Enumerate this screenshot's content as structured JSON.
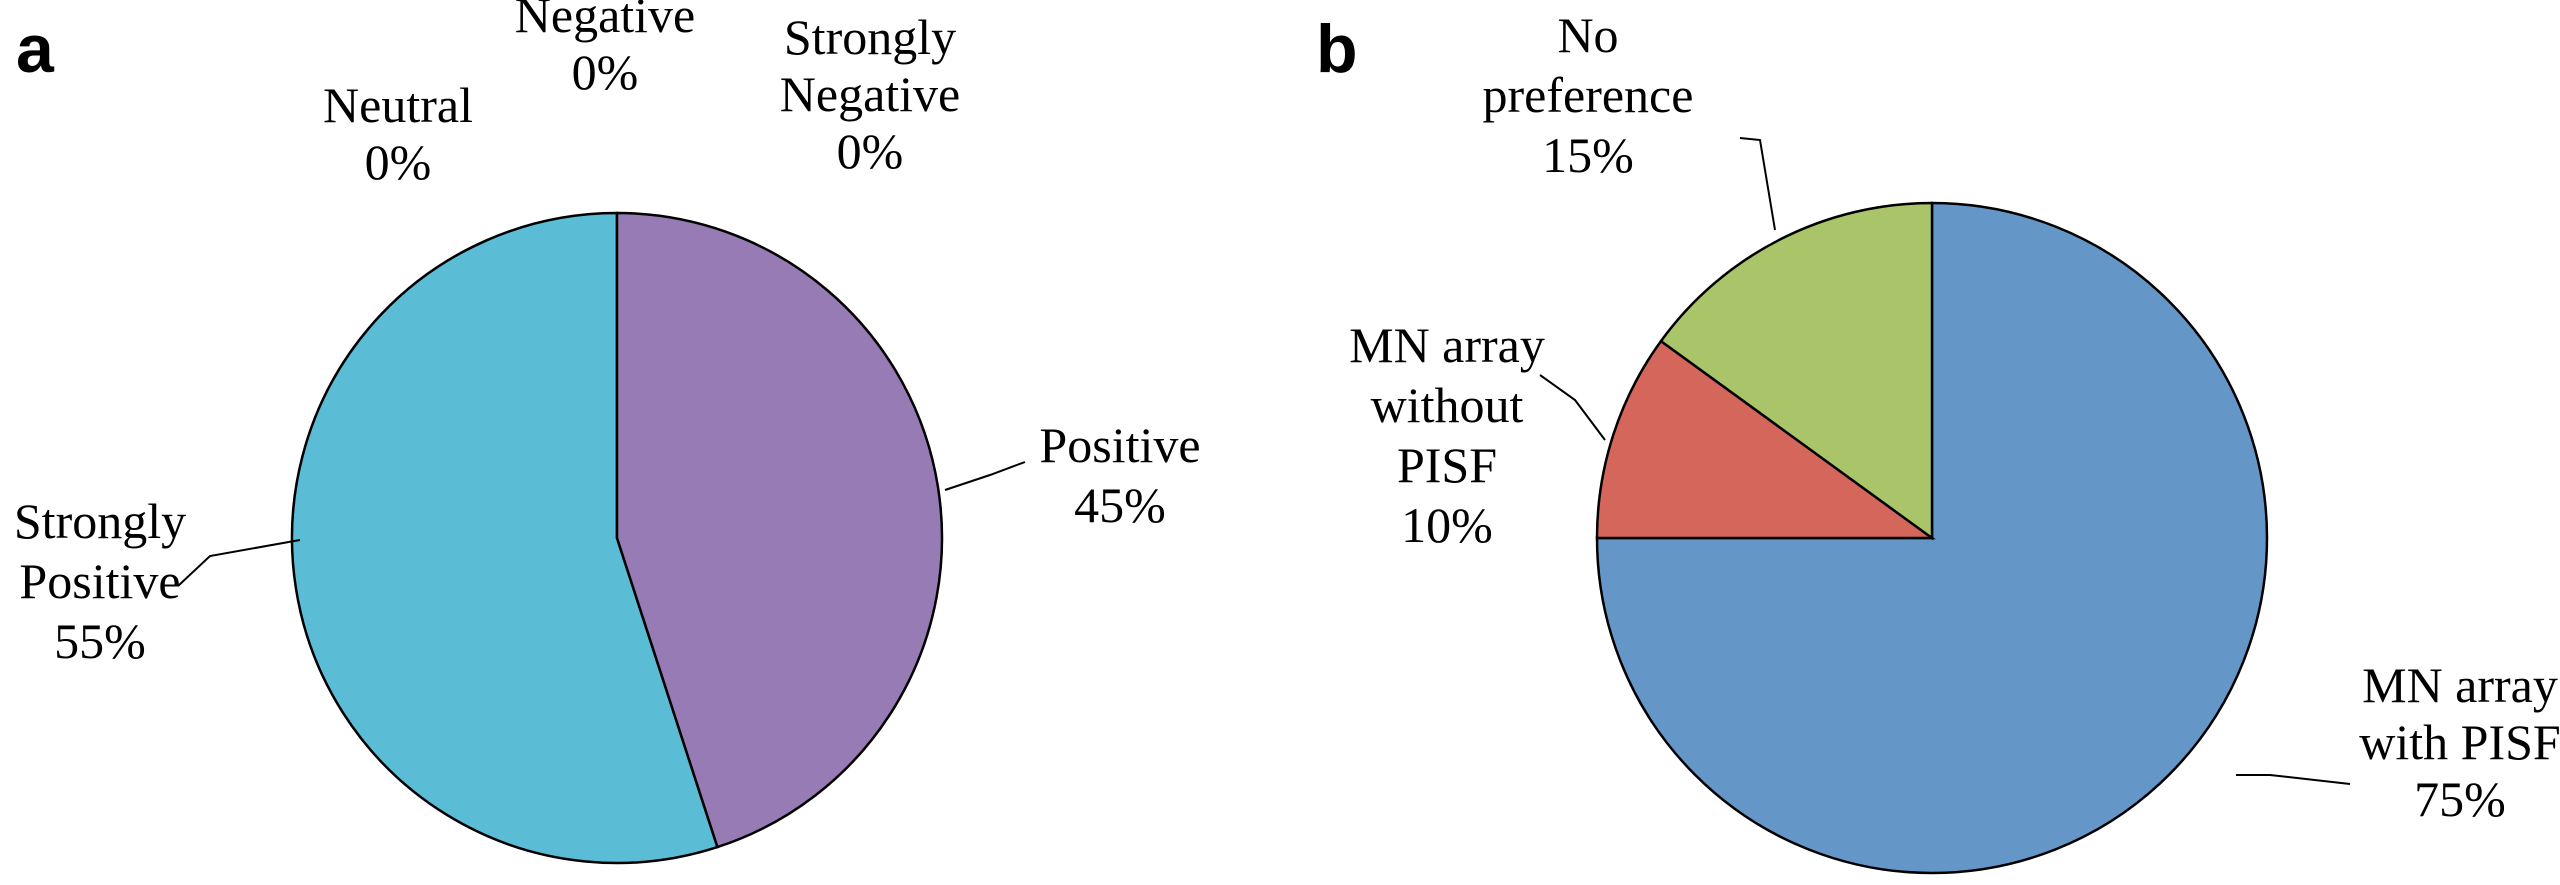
{
  "panels": {
    "a": "a",
    "b": "b"
  },
  "chart_data": [
    {
      "type": "pie",
      "panel": "a",
      "slices": [
        {
          "label": [
            "Strongly",
            "Positive"
          ],
          "percent_text": "55%",
          "value": 55,
          "color": "#5BBCD6"
        },
        {
          "label": [
            "Positive"
          ],
          "percent_text": "45%",
          "value": 45,
          "color": "#977BB5"
        },
        {
          "label": [
            "Strongly",
            "Negative"
          ],
          "percent_text": "0%",
          "value": 0,
          "color": "#888888"
        },
        {
          "label": [
            "Negative"
          ],
          "percent_text": "0%",
          "value": 0,
          "color": "#888888"
        },
        {
          "label": [
            "Neutral"
          ],
          "percent_text": "0%",
          "value": 0,
          "color": "#888888"
        }
      ]
    },
    {
      "type": "pie",
      "panel": "b",
      "slices": [
        {
          "label": [
            "MN array",
            "with PISF"
          ],
          "percent_text": "75%",
          "value": 75,
          "color": "#6497C8"
        },
        {
          "label": [
            "MN array",
            "without",
            "PISF"
          ],
          "percent_text": "10%",
          "value": 10,
          "color": "#D4665C"
        },
        {
          "label": [
            "No",
            "preference"
          ],
          "percent_text": "15%",
          "value": 15,
          "color": "#AAC46A"
        }
      ]
    }
  ]
}
